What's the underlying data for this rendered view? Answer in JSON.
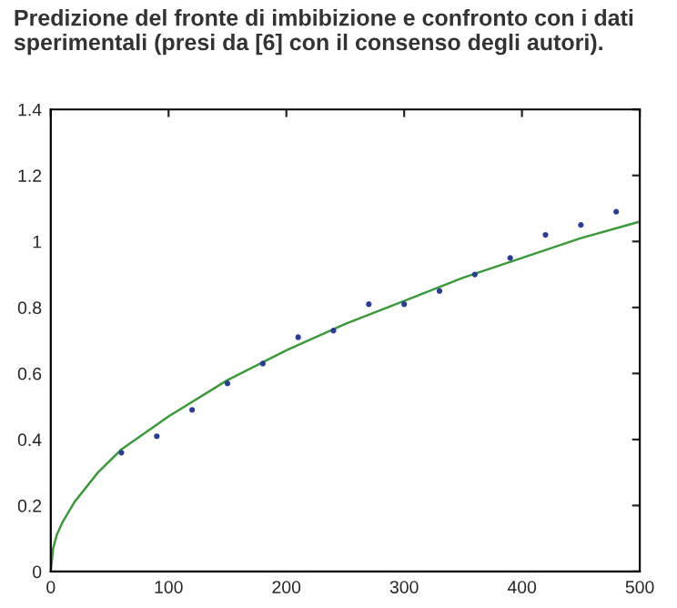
{
  "chart_data": {
    "type": "scatter",
    "title": "Predizione del fronte di imbibizione e confronto con i dati sperimentali (presi da [6] con il consenso degli autori).",
    "xlim": [
      0,
      500
    ],
    "xticks": [
      0,
      100,
      200,
      300,
      400,
      500
    ],
    "ylim": [
      0,
      1.4
    ],
    "yticks": [
      0,
      0.2,
      0.4,
      0.6,
      0.8,
      1,
      1.2,
      1.4
    ],
    "grid": false,
    "series": [
      {
        "marker": "circle",
        "color": "#2a3b9a",
        "x": [
          60,
          90,
          120,
          150,
          180,
          210,
          240,
          270,
          300,
          330,
          360,
          390,
          420,
          450,
          480
        ],
        "values": [
          0.36,
          0.41,
          0.49,
          0.57,
          0.63,
          0.71,
          0.73,
          0.81,
          0.81,
          0.85,
          0.9,
          0.95,
          1.02,
          1.05,
          1.09
        ]
      },
      {
        "type": "line",
        "color": "#3a9a3a",
        "x": [
          0,
          2,
          5,
          10,
          20,
          40,
          60,
          100,
          150,
          200,
          250,
          300,
          350,
          400,
          450,
          500
        ],
        "values": [
          0,
          0.07,
          0.11,
          0.15,
          0.21,
          0.3,
          0.37,
          0.47,
          0.58,
          0.67,
          0.75,
          0.82,
          0.89,
          0.95,
          1.01,
          1.06
        ]
      }
    ]
  }
}
